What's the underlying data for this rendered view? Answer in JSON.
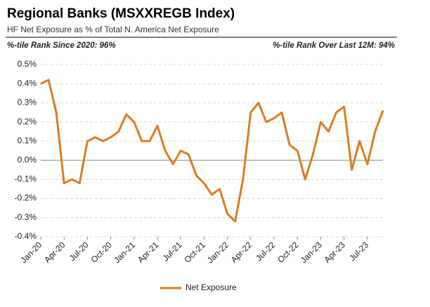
{
  "chart_data": {
    "type": "line",
    "title": "Regional Banks (MSXXREGB Index)",
    "subtitle": "HF Net Exposure as % of Total N. America Net Exposure",
    "annotations": [
      "%-tile Rank Since 2020: 96%",
      "%-tile Rank Over Last 12M: 94%"
    ],
    "x": [
      "2020-01",
      "2020-02",
      "2020-03",
      "2020-04",
      "2020-05",
      "2020-06",
      "2020-07",
      "2020-08",
      "2020-09",
      "2020-10",
      "2020-11",
      "2020-12",
      "2021-01",
      "2021-02",
      "2021-03",
      "2021-04",
      "2021-05",
      "2021-06",
      "2021-07",
      "2021-08",
      "2021-09",
      "2021-10",
      "2021-11",
      "2021-12",
      "2022-01",
      "2022-02",
      "2022-03",
      "2022-04",
      "2022-05",
      "2022-06",
      "2022-07",
      "2022-08",
      "2022-09",
      "2022-10",
      "2022-11",
      "2022-12",
      "2023-01",
      "2023-02",
      "2023-03",
      "2023-04",
      "2023-05",
      "2023-06",
      "2023-07",
      "2023-08",
      "2023-09"
    ],
    "series": [
      {
        "name": "Net Exposure",
        "color": "#e07b20",
        "values": [
          0.4,
          0.42,
          0.25,
          -0.12,
          -0.1,
          -0.12,
          0.1,
          0.12,
          0.1,
          0.12,
          0.15,
          0.24,
          0.2,
          0.1,
          0.1,
          0.18,
          0.05,
          -0.02,
          0.05,
          0.03,
          -0.08,
          -0.12,
          -0.18,
          -0.15,
          -0.28,
          -0.32,
          -0.1,
          0.25,
          0.3,
          0.2,
          0.22,
          0.25,
          0.08,
          0.05,
          -0.1,
          0.03,
          0.2,
          0.15,
          0.25,
          0.28,
          -0.05,
          0.1,
          -0.02,
          0.15,
          0.26
        ]
      }
    ],
    "xlim": [
      "2020-01",
      "2023-09"
    ],
    "xticks": [
      {
        "value": "2020-01",
        "label": "Jan-20"
      },
      {
        "value": "2020-04",
        "label": "Apr-20"
      },
      {
        "value": "2020-07",
        "label": "Jul-20"
      },
      {
        "value": "2020-10",
        "label": "Oct-20"
      },
      {
        "value": "2021-01",
        "label": "Jan-21"
      },
      {
        "value": "2021-04",
        "label": "Apr-21"
      },
      {
        "value": "2021-07",
        "label": "Jul-21"
      },
      {
        "value": "2021-10",
        "label": "Oct-21"
      },
      {
        "value": "2022-01",
        "label": "Jan-22"
      },
      {
        "value": "2022-04",
        "label": "Apr-22"
      },
      {
        "value": "2022-07",
        "label": "Jul-22"
      },
      {
        "value": "2022-10",
        "label": "Oct-22"
      },
      {
        "value": "2023-01",
        "label": "Jan-23"
      },
      {
        "value": "2023-04",
        "label": "Apr-23"
      },
      {
        "value": "2023-07",
        "label": "Jul-23"
      }
    ],
    "ylim": [
      -0.4,
      0.5
    ],
    "yticks": [
      {
        "value": -0.4,
        "label": "-0.4%"
      },
      {
        "value": -0.3,
        "label": "-0.3%"
      },
      {
        "value": -0.2,
        "label": "-0.2%"
      },
      {
        "value": -0.1,
        "label": "-0.1%"
      },
      {
        "value": 0,
        "label": "0.0%"
      },
      {
        "value": 0.1,
        "label": "0.1%"
      },
      {
        "value": 0.2,
        "label": "0.2%"
      },
      {
        "value": 0.3,
        "label": "0.3%"
      },
      {
        "value": 0.4,
        "label": "0.4%"
      },
      {
        "value": 0.5,
        "label": "0.5%"
      }
    ],
    "grid": true,
    "legend": "bottom"
  }
}
